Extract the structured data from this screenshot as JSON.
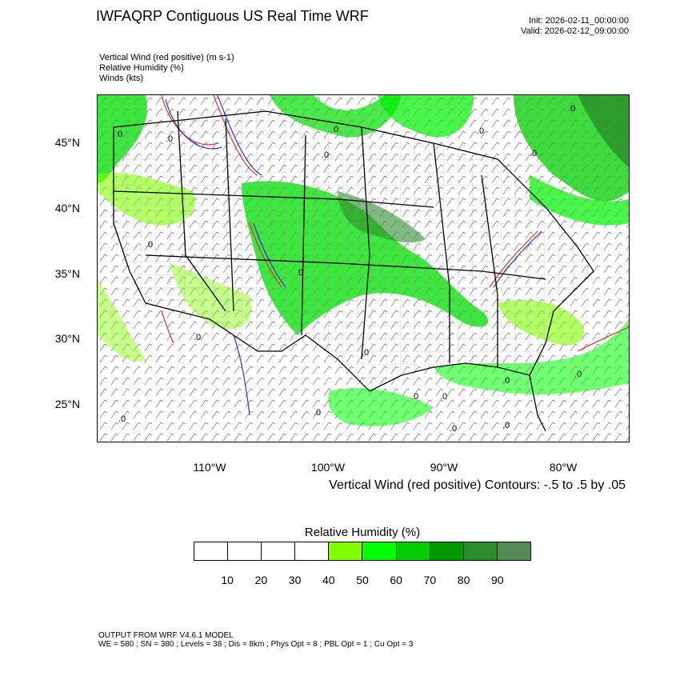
{
  "header": {
    "title": "IWFAQRP Contiguous US Real Time WRF",
    "init": "Init: 2026-02-11_00:00:00",
    "valid": "Valid: 2026-02-12_09:00:00"
  },
  "fields": {
    "line1": "Vertical Wind (red positive)   (m s-1)",
    "line2": "Relative Humidity   (%)",
    "line3": "Winds   (kts)"
  },
  "map": {
    "lat_labels": [
      "45°N",
      "40°N",
      "35°N",
      "30°N",
      "25°N"
    ],
    "lon_labels": [
      "110°W",
      "100°W",
      "90°W",
      "80°W"
    ],
    "contour_label": ".0"
  },
  "contour_note": "Vertical Wind (red positive) Contours: -.5 to .5 by .05",
  "legend": {
    "title": "Relative Humidity   (%)",
    "ticks": [
      "10",
      "20",
      "30",
      "40",
      "50",
      "60",
      "70",
      "80",
      "90"
    ],
    "colors": [
      "#ffffff",
      "#ffffff",
      "#ffffff",
      "#ffffff",
      "#80ff00",
      "#00ff00",
      "#00cc00",
      "#009900",
      "#2b8c2b",
      "#548b54"
    ]
  },
  "footer": {
    "line1": "OUTPUT FROM WRF V4.6.1 MODEL",
    "line2": "WE = 580 ; SN = 380 ; Levels = 38 ; Dis = 8km ; Phys Opt = 8 ; PBL Opt = 1 ; Cu Opt = 3"
  }
}
